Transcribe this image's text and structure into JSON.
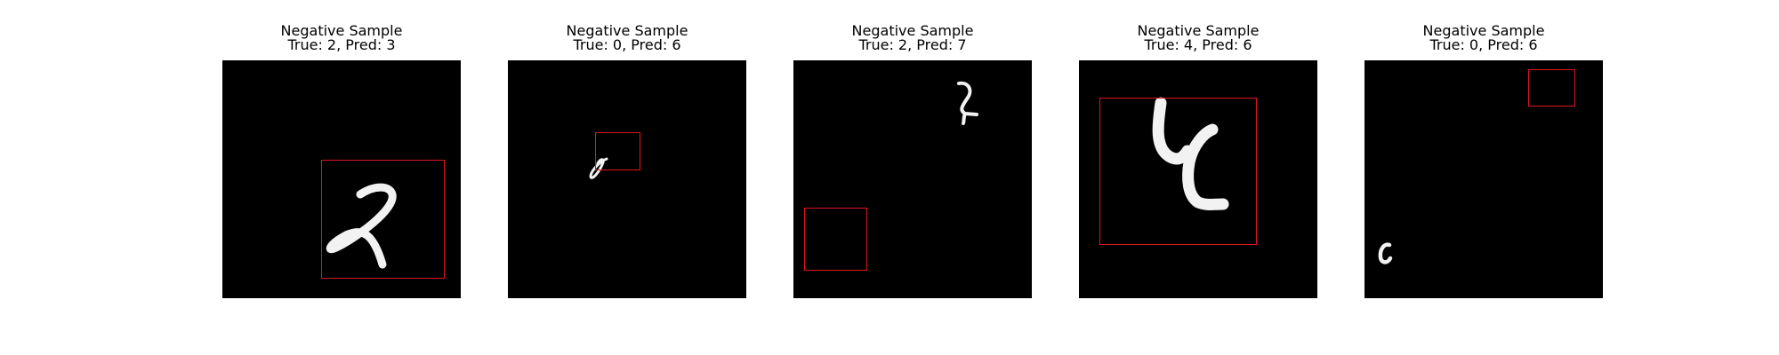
{
  "samples": [
    {
      "title": "Negative Sample",
      "subtitle": "True: 2, Pred: 3",
      "digit_glyph": "handwritten-2",
      "box_color": "#e0141e"
    },
    {
      "title": "Negative Sample",
      "subtitle": "True: 0, Pred: 6",
      "digit_glyph": "handwritten-0-small",
      "box_color": "#e0141e"
    },
    {
      "title": "Negative Sample",
      "subtitle": "True: 2, Pred: 7",
      "digit_glyph": "handwritten-2-small",
      "box_color": "#e0141e"
    },
    {
      "title": "Negative Sample",
      "subtitle": "True: 4, Pred: 6",
      "digit_glyph": "handwritten-4",
      "box_color": "#e0141e"
    },
    {
      "title": "Negative Sample",
      "subtitle": "True: 0, Pred: 6",
      "digit_glyph": "handwritten-0-small",
      "box_color": "#e0141e"
    }
  ]
}
